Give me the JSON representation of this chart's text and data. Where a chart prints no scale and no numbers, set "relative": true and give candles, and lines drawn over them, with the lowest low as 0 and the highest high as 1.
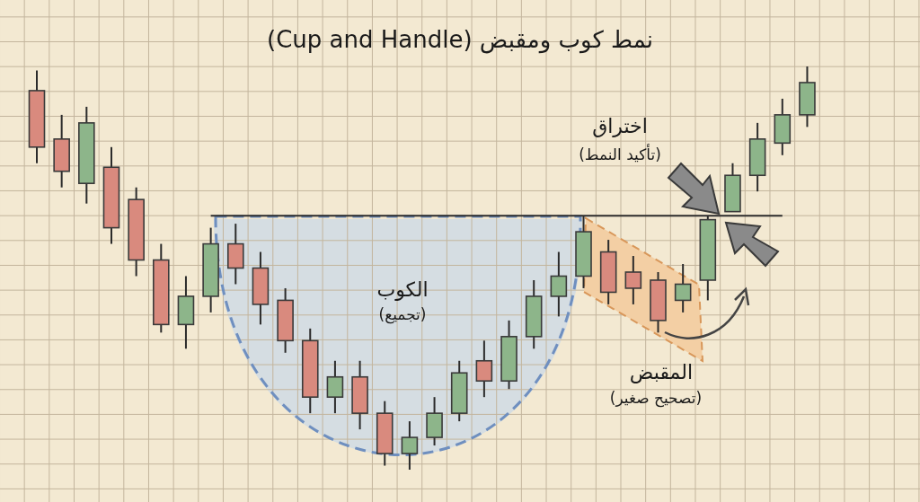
{
  "chart_data": {
    "type": "candlestick",
    "title": "نمط كوب ومقبض (Cup and Handle)",
    "relative": true,
    "grid": true,
    "categories": [
      null,
      null,
      null,
      null,
      null,
      null,
      null,
      null,
      null,
      null,
      null,
      null,
      null,
      null,
      null,
      null,
      null,
      null,
      null,
      null,
      null,
      null,
      null,
      null,
      null,
      null,
      null,
      null,
      null,
      null,
      null,
      null
    ],
    "ohlc": [
      [
        0.94,
        0.99,
        0.76,
        0.8
      ],
      [
        0.82,
        0.88,
        0.7,
        0.74
      ],
      [
        0.71,
        0.9,
        0.66,
        0.86
      ],
      [
        0.75,
        0.8,
        0.56,
        0.6
      ],
      [
        0.67,
        0.7,
        0.48,
        0.52
      ],
      [
        0.52,
        0.56,
        0.34,
        0.36
      ],
      [
        0.36,
        0.48,
        0.3,
        0.43
      ],
      [
        0.43,
        0.6,
        0.39,
        0.56
      ],
      [
        0.56,
        0.61,
        0.46,
        0.5
      ],
      [
        0.5,
        0.54,
        0.36,
        0.41
      ],
      [
        0.42,
        0.45,
        0.29,
        0.32
      ],
      [
        0.32,
        0.35,
        0.14,
        0.18
      ],
      [
        0.18,
        0.27,
        0.14,
        0.23
      ],
      [
        0.23,
        0.27,
        0.1,
        0.14
      ],
      [
        0.14,
        0.17,
        0.01,
        0.04
      ],
      [
        0.04,
        0.12,
        0.0,
        0.08
      ],
      [
        0.08,
        0.18,
        0.06,
        0.14
      ],
      [
        0.14,
        0.27,
        0.12,
        0.24
      ],
      [
        0.27,
        0.32,
        0.18,
        0.22
      ],
      [
        0.22,
        0.37,
        0.2,
        0.33
      ],
      [
        0.33,
        0.47,
        0.3,
        0.43
      ],
      [
        0.43,
        0.54,
        0.38,
        0.48
      ],
      [
        0.48,
        0.63,
        0.45,
        0.59
      ],
      [
        0.54,
        0.57,
        0.41,
        0.44
      ],
      [
        0.49,
        0.53,
        0.41,
        0.45
      ],
      [
        0.47,
        0.49,
        0.34,
        0.37
      ],
      [
        0.42,
        0.51,
        0.39,
        0.46
      ],
      [
        0.47,
        0.63,
        0.42,
        0.62
      ],
      [
        0.64,
        0.76,
        0.64,
        0.73
      ],
      [
        0.73,
        0.86,
        0.69,
        0.82
      ],
      [
        0.81,
        0.92,
        0.78,
        0.88
      ],
      [
        0.88,
        1.0,
        0.85,
        0.96
      ]
    ],
    "series": [
      {
        "type": "line",
        "color": "#2e2e2e",
        "values": [
          null,
          null,
          null,
          null,
          null,
          null,
          null,
          0.63,
          0.63,
          0.63,
          0.63,
          0.63,
          0.63,
          0.63,
          0.63,
          0.63,
          0.63,
          0.63,
          0.63,
          0.63,
          0.63,
          0.63,
          0.63,
          0.63,
          0.63,
          0.63,
          0.63,
          0.63,
          0.63,
          0.63,
          0.63,
          null
        ]
      }
    ],
    "annotations": [
      "الكوب",
      "(تجميع)",
      "المقبض",
      "(تصحيح صغير)",
      "اختراق",
      "(تأكيد النمط)"
    ]
  }
}
